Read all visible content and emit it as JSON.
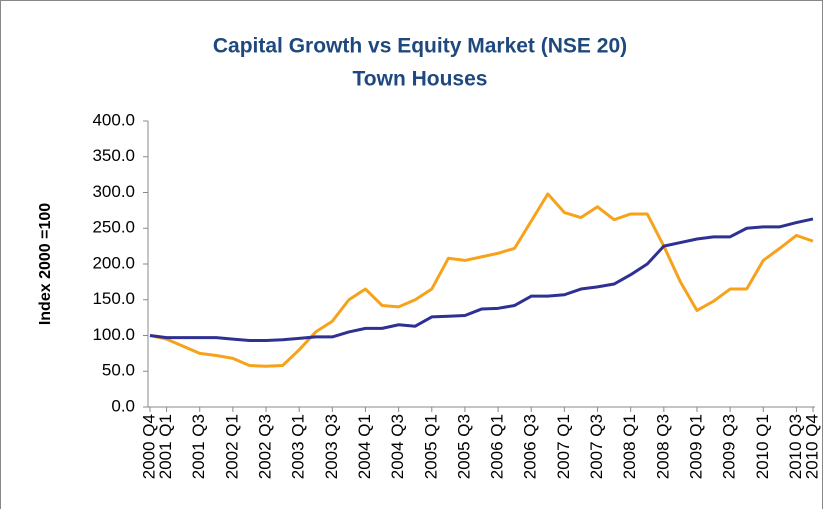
{
  "chart_data": {
    "type": "line",
    "title": "Capital Growth vs Equity Market (NSE 20)",
    "subtitle": "Town Houses",
    "y_label": "Index 2000 =100",
    "categories": [
      "2000 Q4",
      "2001 Q1",
      null,
      "2001 Q3",
      null,
      "2002 Q1",
      null,
      "2002 Q3",
      null,
      "2003 Q1",
      null,
      "2003 Q3",
      null,
      "2004 Q1",
      null,
      "2004 Q3",
      null,
      "2005 Q1",
      null,
      "2005 Q3",
      null,
      "2006 Q1",
      null,
      "2006 Q3",
      null,
      "2007 Q1",
      null,
      "2007 Q3",
      null,
      "2008 Q1",
      null,
      "2008 Q3",
      null,
      "2009 Q1",
      null,
      "2009 Q3",
      null,
      "2010 Q1",
      null,
      "2010 Q3",
      "2010 Q4"
    ],
    "series": [
      {
        "color": "#f7a21b",
        "values": [
          100,
          95,
          85,
          75,
          72,
          68,
          58,
          57,
          58,
          80,
          105,
          120,
          150,
          165,
          142,
          140,
          150,
          165,
          208,
          205,
          210,
          215,
          222,
          260,
          298,
          272,
          265,
          280,
          262,
          270,
          270,
          225,
          175,
          135,
          148,
          165,
          165,
          205,
          222,
          240,
          232
        ]
      },
      {
        "color": "#2e3192",
        "values": [
          100,
          97,
          97,
          97,
          97,
          95,
          93,
          93,
          94,
          96,
          98,
          98,
          105,
          110,
          110,
          115,
          113,
          126,
          127,
          128,
          137,
          138,
          142,
          155,
          155,
          157,
          165,
          168,
          172,
          185,
          200,
          225,
          230,
          235,
          238,
          238,
          250,
          252,
          252,
          258,
          263
        ]
      }
    ],
    "ylim": [
      0,
      400
    ],
    "yticks": [
      {
        "value": 0,
        "label": "0.0"
      },
      {
        "value": 50,
        "label": "50.0"
      },
      {
        "value": 100,
        "label": "100.0"
      },
      {
        "value": 150,
        "label": "150.0"
      },
      {
        "value": 200,
        "label": "200.0"
      },
      {
        "value": 250,
        "label": "250.0"
      },
      {
        "value": 300,
        "label": "300.0"
      },
      {
        "value": 350,
        "label": "350.0"
      },
      {
        "value": 400,
        "label": "400.0"
      }
    ]
  }
}
